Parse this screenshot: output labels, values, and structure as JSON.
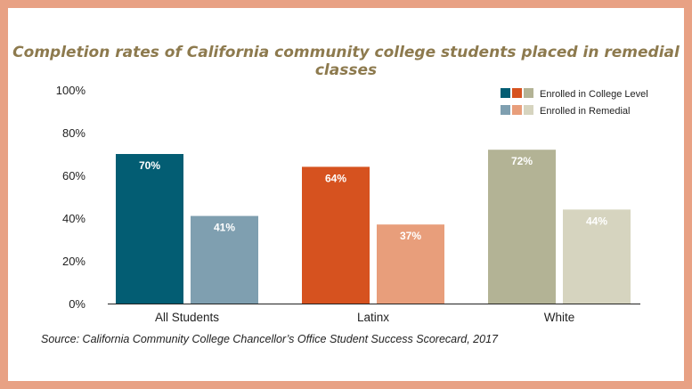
{
  "chart_data": {
    "type": "bar",
    "title": "Completion rates of California community college students placed in remedial classes",
    "source": "Source: California Community College Chancellor’s Office Student Success Scorecard, 2017",
    "categories": [
      "All Students",
      "Latinx",
      "White"
    ],
    "series": [
      {
        "name": "Enrolled in College Level",
        "values": [
          70,
          64,
          72
        ],
        "labels": [
          "70%",
          "64%",
          "72%"
        ],
        "colors": [
          "#035d73",
          "#d6521f",
          "#b3b395"
        ]
      },
      {
        "name": "Enrolled in Remedial",
        "values": [
          41,
          37,
          44
        ],
        "labels": [
          "41%",
          "37%",
          "44%"
        ],
        "colors": [
          "#7f9fb0",
          "#e89e7b",
          "#d6d4bf"
        ]
      }
    ],
    "yticks": [
      0,
      20,
      40,
      60,
      80,
      100
    ],
    "ytick_labels": [
      "0%",
      "20%",
      "40%",
      "60%",
      "80%",
      "100%"
    ],
    "ylim": [
      0,
      100
    ],
    "legend_position": "top-right",
    "grid": false
  }
}
